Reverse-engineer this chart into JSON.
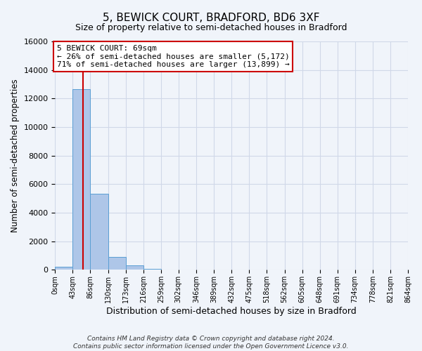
{
  "title": "5, BEWICK COURT, BRADFORD, BD6 3XF",
  "subtitle": "Size of property relative to semi-detached houses in Bradford",
  "xlabel": "Distribution of semi-detached houses by size in Bradford",
  "ylabel": "Number of semi-detached properties",
  "bar_edges": [
    0,
    43,
    86,
    130,
    173,
    216,
    259,
    302,
    346,
    389,
    432,
    475,
    518,
    562,
    605,
    648,
    691,
    734,
    778,
    821,
    864
  ],
  "bar_heights": [
    200,
    12650,
    5350,
    900,
    300,
    50,
    0,
    0,
    0,
    0,
    0,
    0,
    0,
    0,
    0,
    0,
    0,
    0,
    0,
    0
  ],
  "bar_color": "#aec6e8",
  "bar_edgecolor": "#5a9fd4",
  "ylim": [
    0,
    16000
  ],
  "yticks": [
    0,
    2000,
    4000,
    6000,
    8000,
    10000,
    12000,
    14000,
    16000
  ],
  "property_size": 69,
  "red_line_x": 69,
  "annotation_title": "5 BEWICK COURT: 69sqm",
  "annotation_line1": "← 26% of semi-detached houses are smaller (5,172)",
  "annotation_line2": "71% of semi-detached houses are larger (13,899) →",
  "annotation_box_color": "#ffffff",
  "annotation_box_edgecolor": "#cc0000",
  "red_line_color": "#cc0000",
  "grid_color": "#d0d8e8",
  "background_color": "#f0f4fa",
  "footer_line1": "Contains HM Land Registry data © Crown copyright and database right 2024.",
  "footer_line2": "Contains public sector information licensed under the Open Government Licence v3.0."
}
